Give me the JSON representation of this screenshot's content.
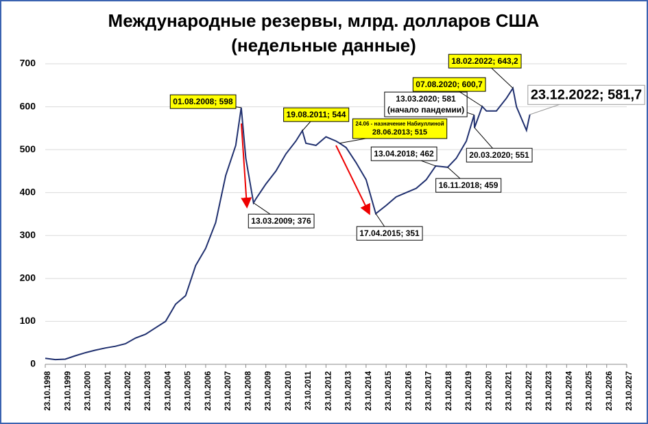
{
  "chart_data": {
    "type": "line",
    "title": "Международные резервы, млрд. долларов США",
    "subtitle": "(недельные данные)",
    "x": [
      "23.10.1998",
      "23.04.1999",
      "23.10.1999",
      "23.04.2000",
      "23.10.2000",
      "23.04.2001",
      "23.10.2001",
      "23.04.2002",
      "23.10.2002",
      "23.04.2003",
      "23.10.2003",
      "23.04.2004",
      "23.10.2004",
      "23.04.2005",
      "23.10.2005",
      "23.04.2006",
      "23.10.2006",
      "23.04.2007",
      "23.10.2007",
      "23.04.2008",
      "01.08.2008",
      "23.10.2008",
      "13.03.2009",
      "23.04.2009",
      "23.10.2009",
      "23.04.2010",
      "23.10.2010",
      "23.04.2011",
      "19.08.2011",
      "23.10.2011",
      "23.04.2012",
      "23.10.2012",
      "23.04.2013",
      "28.06.2013",
      "23.10.2013",
      "23.04.2014",
      "23.10.2014",
      "17.04.2015",
      "23.10.2015",
      "23.04.2016",
      "23.10.2016",
      "23.04.2017",
      "23.10.2017",
      "13.04.2018",
      "16.11.2018",
      "23.04.2019",
      "23.10.2019",
      "13.03.2020",
      "20.03.2020",
      "07.08.2020",
      "23.10.2020",
      "23.04.2021",
      "23.10.2021",
      "18.02.2022",
      "23.04.2022",
      "23.10.2022",
      "23.12.2022"
    ],
    "series": [
      {
        "color": "#1f2f6e",
        "values": [
          14,
          11,
          12,
          20,
          27,
          33,
          38,
          42,
          48,
          61,
          70,
          85,
          100,
          140,
          160,
          230,
          270,
          330,
          440,
          510,
          598,
          480,
          376,
          385,
          420,
          450,
          490,
          520,
          544,
          515,
          510,
          530,
          520,
          515,
          505,
          470,
          430,
          351,
          370,
          390,
          400,
          410,
          430,
          462,
          459,
          480,
          520,
          581,
          551,
          600.7,
          590,
          590,
          620,
          643.2,
          600,
          545,
          581.7
        ],
        "value_labels": [
          null,
          null,
          null,
          null,
          null,
          null,
          null,
          null,
          null,
          null,
          null,
          null,
          null,
          null,
          null,
          null,
          null,
          null,
          null,
          null,
          "01.08.2008; 598",
          null,
          "13.03.2009; 376",
          null,
          null,
          null,
          null,
          null,
          "19.08.2011; 544",
          null,
          null,
          null,
          null,
          "28.06.2013; 515",
          null,
          null,
          null,
          "17.04.2015; 351",
          null,
          null,
          null,
          null,
          null,
          "13.04.2018; 462",
          "16.11.2018; 459",
          null,
          null,
          "13.03.2020; 581",
          "20.03.2020; 551",
          "07.08.2020; 600,7",
          null,
          null,
          null,
          "18.02.2022; 643,2",
          null,
          null,
          "23.12.2022; 581,7"
        ]
      }
    ],
    "notes": [
      "(начало пандемии)",
      "24.06 - назначение Набиуллиной"
    ],
    "xlim": [
      "23.10.1998",
      "23.10.2027"
    ],
    "xticks": [
      "23.10.1998",
      "23.10.1999",
      "23.10.2000",
      "23.10.2001",
      "23.10.2002",
      "23.10.2003",
      "23.10.2004",
      "23.10.2005",
      "23.10.2006",
      "23.10.2007",
      "23.10.2008",
      "23.10.2009",
      "23.10.2010",
      "23.10.2011",
      "23.10.2012",
      "23.10.2013",
      "23.10.2014",
      "23.10.2015",
      "23.10.2016",
      "23.10.2017",
      "23.10.2018",
      "23.10.2019",
      "23.10.2020",
      "23.10.2021",
      "23.10.2022",
      "23.10.2023",
      "23.10.2024",
      "23.10.2025",
      "23.10.2026",
      "23.10.2027"
    ],
    "ylim": [
      0,
      700
    ],
    "yticks": [
      0,
      100,
      200,
      300,
      400,
      500,
      600,
      700
    ],
    "grid": true
  }
}
